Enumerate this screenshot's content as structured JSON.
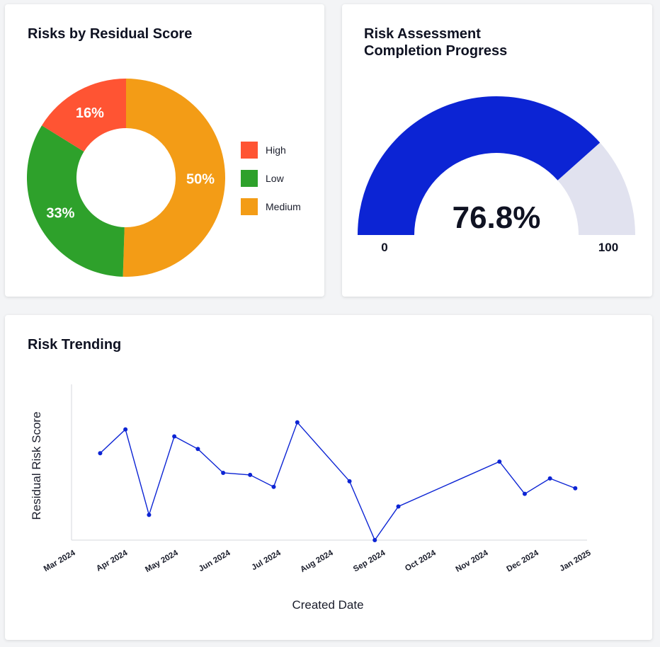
{
  "donut_card": {
    "title": "Risks by Residual Score"
  },
  "gauge_card": {
    "title_line1": "Risk Assessment",
    "title_line2": "Completion Progress",
    "value_label": "76.8%",
    "min_label": "0",
    "max_label": "100",
    "fill_color": "#0c24d4",
    "track_color": "#e1e2ef"
  },
  "trend_card": {
    "title": "Risk Trending"
  },
  "chart_data": [
    {
      "type": "pie",
      "title": "Risks by Residual Score",
      "donut": true,
      "slices": [
        {
          "label": "Medium",
          "value": 50,
          "display": "50%",
          "color": "#f39c16"
        },
        {
          "label": "Low",
          "value": 33,
          "display": "33%",
          "color": "#2ea12b"
        },
        {
          "label": "High",
          "value": 16,
          "display": "16%",
          "color": "#ff5433"
        }
      ],
      "legend": [
        {
          "label": "High",
          "color": "#ff5433"
        },
        {
          "label": "Low",
          "color": "#2ea12b"
        },
        {
          "label": "Medium",
          "color": "#f39c16"
        }
      ],
      "legend_position": "right"
    },
    {
      "type": "gauge",
      "title": "Risk Assessment Completion Progress",
      "value": 76.8,
      "min": 0,
      "max": 100,
      "display": "76.8%"
    },
    {
      "type": "line",
      "title": "Risk Trending",
      "xlabel": "Created Date",
      "ylabel": "Residual Risk Score",
      "x_tick_labels": [
        "Mar 2024",
        "Apr 2024",
        "May 2024",
        "Jun 2024",
        "Jul 2024",
        "Aug 2024",
        "Sep 2024",
        "Oct 2024",
        "Nov 2024",
        "Dec 2024",
        "Jan 2025"
      ],
      "ylim": [
        0,
        10
      ],
      "y_ticks_shown": false,
      "grid": false,
      "series": [
        {
          "color": "#0c24d4",
          "points": [
            {
              "x": "2024-03-18",
              "y": 6.2
            },
            {
              "x": "2024-04-02",
              "y": 7.9
            },
            {
              "x": "2024-04-16",
              "y": 1.8
            },
            {
              "x": "2024-05-01",
              "y": 7.4
            },
            {
              "x": "2024-05-15",
              "y": 6.5
            },
            {
              "x": "2024-05-30",
              "y": 4.8
            },
            {
              "x": "2024-06-15",
              "y": 4.65
            },
            {
              "x": "2024-06-29",
              "y": 3.8
            },
            {
              "x": "2024-07-13",
              "y": 8.4
            },
            {
              "x": "2024-08-13",
              "y": 4.2
            },
            {
              "x": "2024-08-28",
              "y": 0.0
            },
            {
              "x": "2024-09-11",
              "y": 2.4
            },
            {
              "x": "2024-11-10",
              "y": 5.6
            },
            {
              "x": "2024-11-25",
              "y": 3.3
            },
            {
              "x": "2024-12-10",
              "y": 4.4
            },
            {
              "x": "2024-12-25",
              "y": 3.7
            }
          ]
        }
      ]
    }
  ]
}
